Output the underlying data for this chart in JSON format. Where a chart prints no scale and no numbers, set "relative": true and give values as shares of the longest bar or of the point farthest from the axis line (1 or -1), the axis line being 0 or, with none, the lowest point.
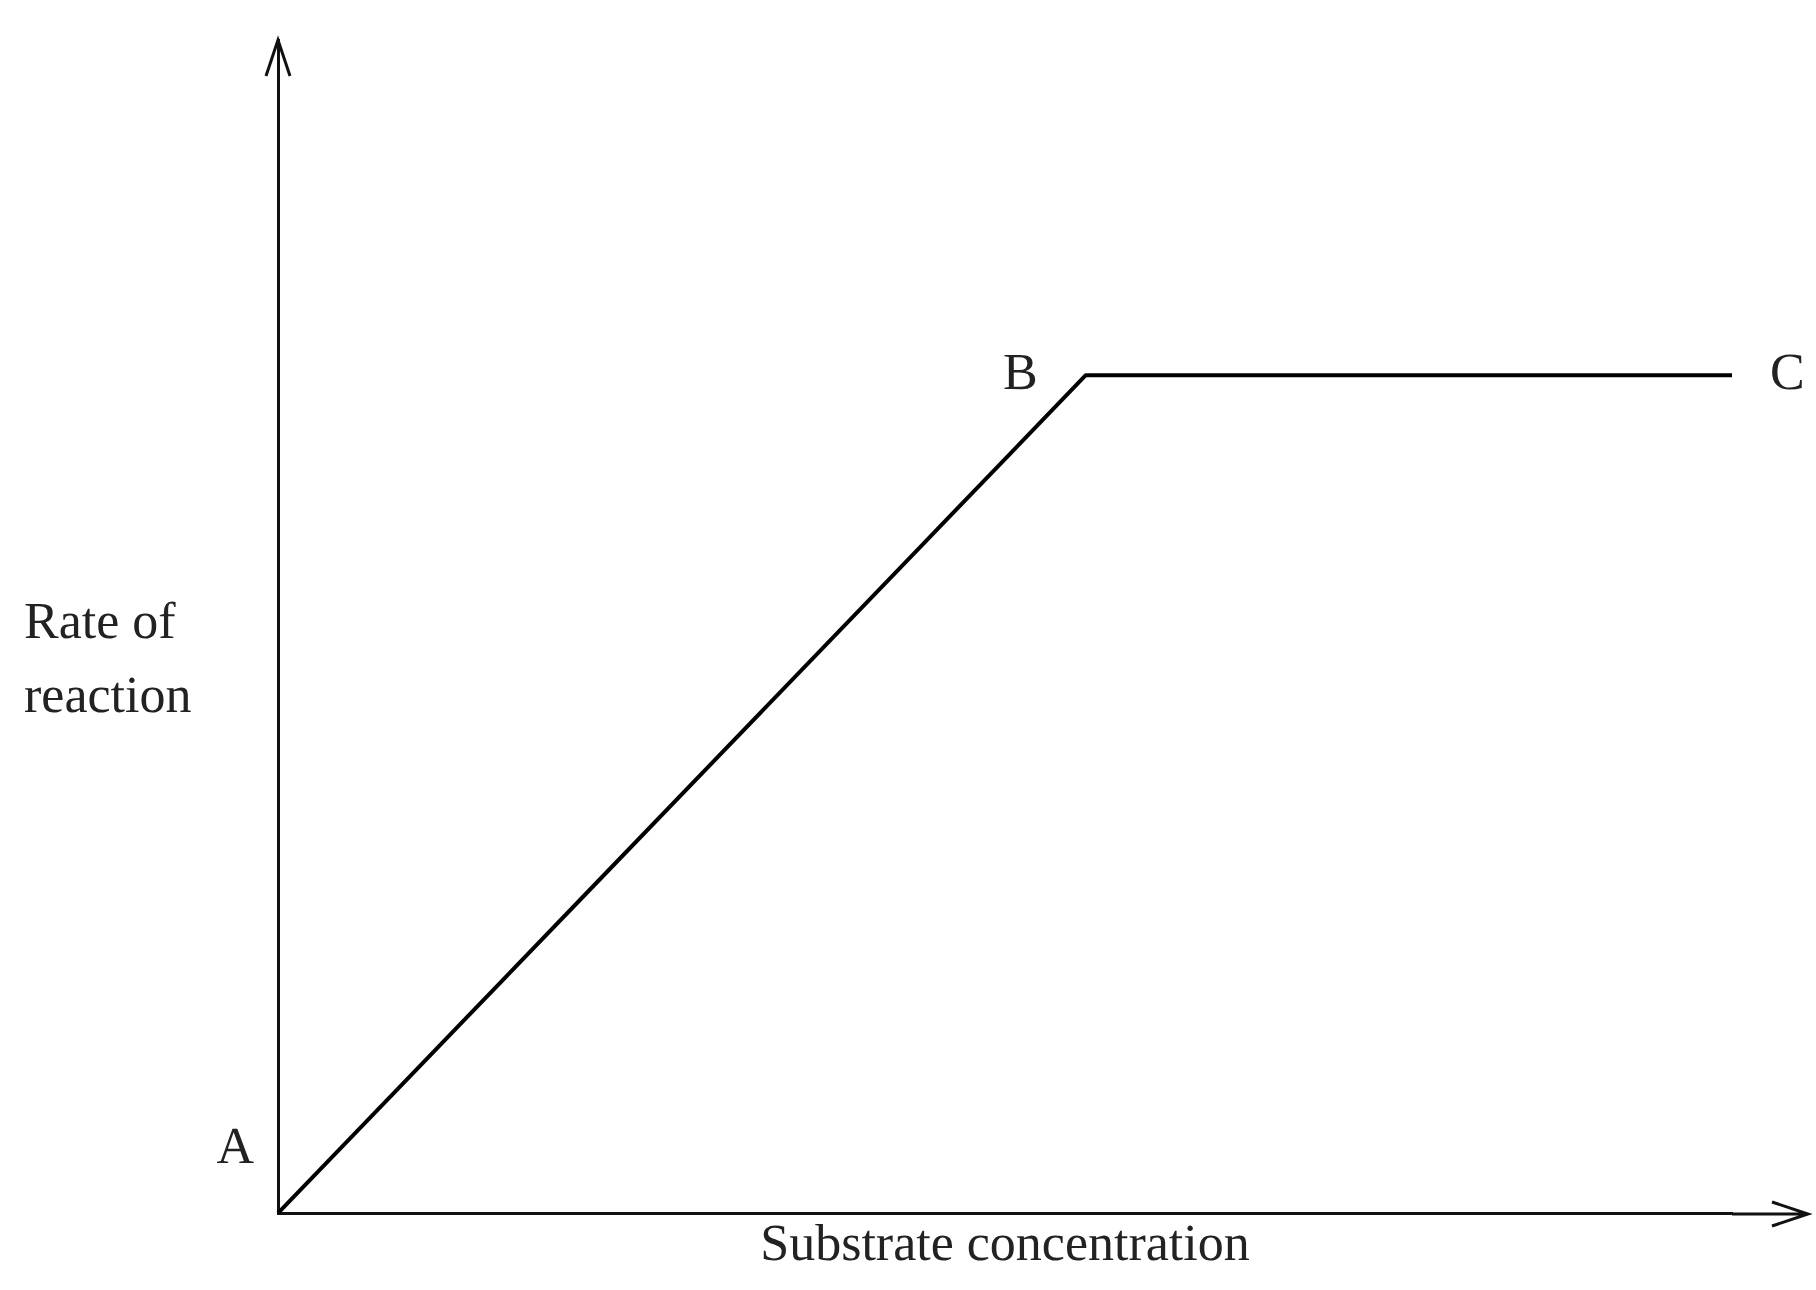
{
  "chart_data": {
    "type": "line",
    "relative": true,
    "xlabel": "Substrate concentration",
    "ylabel": "Rate of reaction",
    "categories": [
      null,
      null,
      null,
      null,
      null,
      null,
      null,
      null,
      null,
      null
    ],
    "series": [
      {
        "color": "#000000",
        "values": [
          0,
          0.2,
          0.4,
          0.6,
          0.8,
          1,
          1,
          1,
          1,
          1
        ]
      }
    ],
    "annotations": [
      "A",
      "B",
      "C"
    ],
    "grid": false,
    "legend": false,
    "marker": "none",
    "line_style": "solid"
  }
}
